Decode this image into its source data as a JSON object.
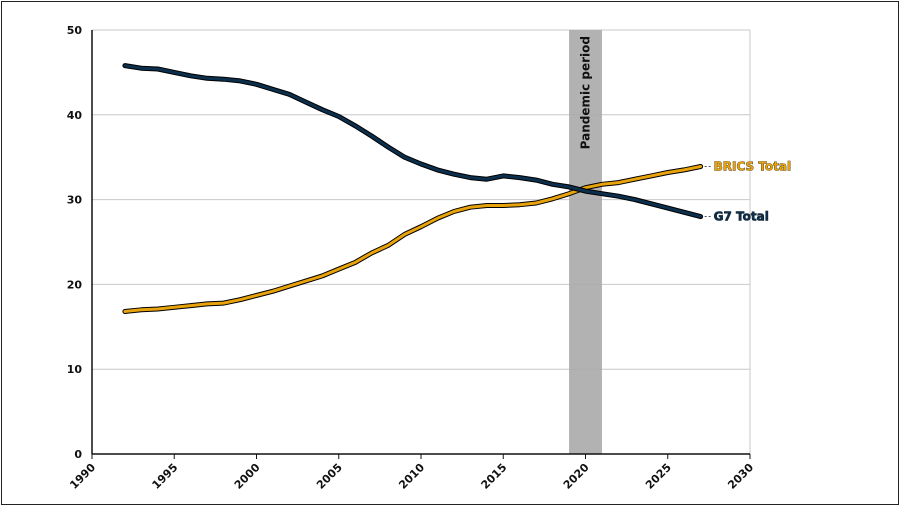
{
  "chart_data": {
    "type": "line",
    "title": "",
    "xlabel": "",
    "ylabel": "",
    "xlim": [
      1990,
      2030
    ],
    "ylim": [
      0,
      50
    ],
    "x_ticks": [
      "1990",
      "1995",
      "2000",
      "2005",
      "2010",
      "2015",
      "2020",
      "2025",
      "2030"
    ],
    "y_ticks": [
      "0",
      "10",
      "20",
      "30",
      "40",
      "50"
    ],
    "grid": true,
    "legend": "inline labels at line ends (right)",
    "x": [
      1992,
      1993,
      1994,
      1995,
      1996,
      1997,
      1998,
      1999,
      2000,
      2001,
      2002,
      2003,
      2004,
      2005,
      2006,
      2007,
      2008,
      2009,
      2010,
      2011,
      2012,
      2013,
      2014,
      2015,
      2016,
      2017,
      2018,
      2019,
      2020,
      2021,
      2022,
      2023,
      2024,
      2025,
      2026,
      2027
    ],
    "series": [
      {
        "name": "BRICS Total",
        "color": "#e8a20c",
        "values": [
          16.8,
          17.0,
          17.1,
          17.3,
          17.5,
          17.7,
          17.8,
          18.2,
          18.7,
          19.2,
          19.8,
          20.4,
          21.0,
          21.8,
          22.6,
          23.7,
          24.6,
          25.9,
          26.8,
          27.8,
          28.6,
          29.1,
          29.3,
          29.3,
          29.4,
          29.6,
          30.1,
          30.7,
          31.4,
          31.8,
          32.0,
          32.4,
          32.8,
          33.2,
          33.5,
          33.9
        ]
      },
      {
        "name": "G7 Total",
        "color": "#0b2f4c",
        "values": [
          45.8,
          45.5,
          45.4,
          45.0,
          44.6,
          44.3,
          44.2,
          44.0,
          43.6,
          43.0,
          42.4,
          41.5,
          40.6,
          39.8,
          38.7,
          37.5,
          36.2,
          35.0,
          34.2,
          33.5,
          33.0,
          32.6,
          32.4,
          32.8,
          32.6,
          32.3,
          31.8,
          31.5,
          31.0,
          30.7,
          30.4,
          30.0,
          29.5,
          29.0,
          28.5,
          28.0
        ]
      }
    ],
    "annotations": [
      {
        "type": "band",
        "x_start": 2019,
        "x_end": 2021,
        "label": "Pandemic period",
        "color": "#aaaaaa"
      }
    ],
    "colors": {
      "grid": "#c8c8c8",
      "axis": "#111111",
      "label_outline": "#000000"
    }
  }
}
